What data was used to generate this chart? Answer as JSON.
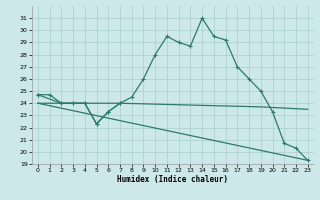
{
  "xlabel": "Humidex (Indice chaleur)",
  "bg_color": "#cde8e8",
  "line_color": "#2a7a70",
  "grid_color": "#aacece",
  "xlim": [
    -0.5,
    23.5
  ],
  "ylim": [
    19,
    32
  ],
  "yticks": [
    19,
    20,
    21,
    22,
    23,
    24,
    25,
    26,
    27,
    28,
    29,
    30,
    31
  ],
  "xticks": [
    0,
    1,
    2,
    3,
    4,
    5,
    6,
    7,
    8,
    9,
    10,
    11,
    12,
    13,
    14,
    15,
    16,
    17,
    18,
    19,
    20,
    21,
    22,
    23
  ],
  "curve1_x": [
    0,
    1,
    2,
    3,
    4,
    5,
    6,
    7,
    8,
    9,
    10,
    11,
    12,
    13,
    14,
    15,
    16,
    17,
    18,
    19,
    20,
    21,
    22,
    23
  ],
  "curve1_y": [
    24.7,
    24.7,
    24.0,
    24.0,
    24.0,
    22.3,
    23.3,
    24.0,
    24.5,
    26.0,
    28.0,
    29.5,
    29.0,
    28.7,
    31.0,
    29.5,
    29.2,
    27.0,
    26.0,
    25.0,
    23.3,
    20.7,
    20.3,
    19.3
  ],
  "curve2_x": [
    0,
    2,
    3,
    4,
    5,
    6,
    7
  ],
  "curve2_y": [
    24.7,
    24.0,
    24.0,
    24.0,
    22.3,
    23.3,
    24.0
  ],
  "curve3_x": [
    0,
    7,
    19,
    23
  ],
  "curve3_y": [
    24.0,
    24.0,
    23.7,
    23.5
  ],
  "curve4_x": [
    0,
    23
  ],
  "curve4_y": [
    24.0,
    19.3
  ]
}
